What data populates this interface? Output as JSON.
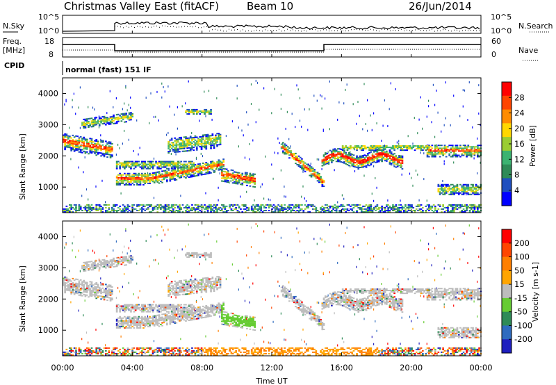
{
  "header": {
    "title": "Christmas Valley East (fitACF)",
    "beam": "Beam 10",
    "date": "26/Jun/2014"
  },
  "noise_panel": {
    "left_label": "N.Sky",
    "left_ticks": [
      "10^5",
      "10^0"
    ],
    "right_ticks": [
      "10^5",
      "10^0"
    ],
    "right_label": "N.Search"
  },
  "freq_panel": {
    "left_label_1": "Freq.",
    "left_label_2": "[MHz]",
    "left_ticks": [
      "18",
      "8"
    ],
    "right_ticks": [
      "60",
      "0"
    ],
    "right_label": "Nave",
    "cpid_label": "CPID",
    "cpid_value": "normal (fast) 151 IF"
  },
  "chart_data": [
    {
      "type": "heatmap",
      "title": "Power",
      "ylabel": "Slant Range [km]",
      "xlabel": "Time UT",
      "x_ticks": [
        "00:00",
        "04:00",
        "08:00",
        "12:00",
        "16:00",
        "20:00",
        "00:00"
      ],
      "y_ticks": [
        "1000",
        "2000",
        "3000",
        "4000"
      ],
      "ylim": [
        180,
        4500
      ],
      "colorbar": {
        "label": "Power [dB]",
        "ticks": [
          "4",
          "8",
          "12",
          "16",
          "20",
          "24",
          "28"
        ],
        "colors": [
          "#0000ff",
          "#1f4fbf",
          "#2e8b57",
          "#3cb371",
          "#9acd32",
          "#ffd700",
          "#ff8c00",
          "#ff4500",
          "#ff0000"
        ]
      }
    },
    {
      "type": "heatmap",
      "title": "Velocity",
      "ylabel": "Slant Range [km]",
      "xlabel": "Time UT",
      "x_ticks": [
        "00:00",
        "04:00",
        "08:00",
        "12:00",
        "16:00",
        "20:00",
        "00:00"
      ],
      "y_ticks": [
        "1000",
        "2000",
        "3000",
        "4000"
      ],
      "ylim": [
        180,
        4500
      ],
      "colorbar": {
        "label": "Velocity [m s-1]",
        "ticks": [
          "200",
          "100",
          "50",
          "15",
          "-15",
          "-50",
          "-100",
          "-200"
        ],
        "colors": [
          "#1f1fbf",
          "#2e6bbf",
          "#2e8b57",
          "#66cc33",
          "#bdbdbd",
          "#ffa500",
          "#ff7f00",
          "#ff4500",
          "#ff0000"
        ]
      }
    }
  ],
  "x_axis_label": "Time UT"
}
